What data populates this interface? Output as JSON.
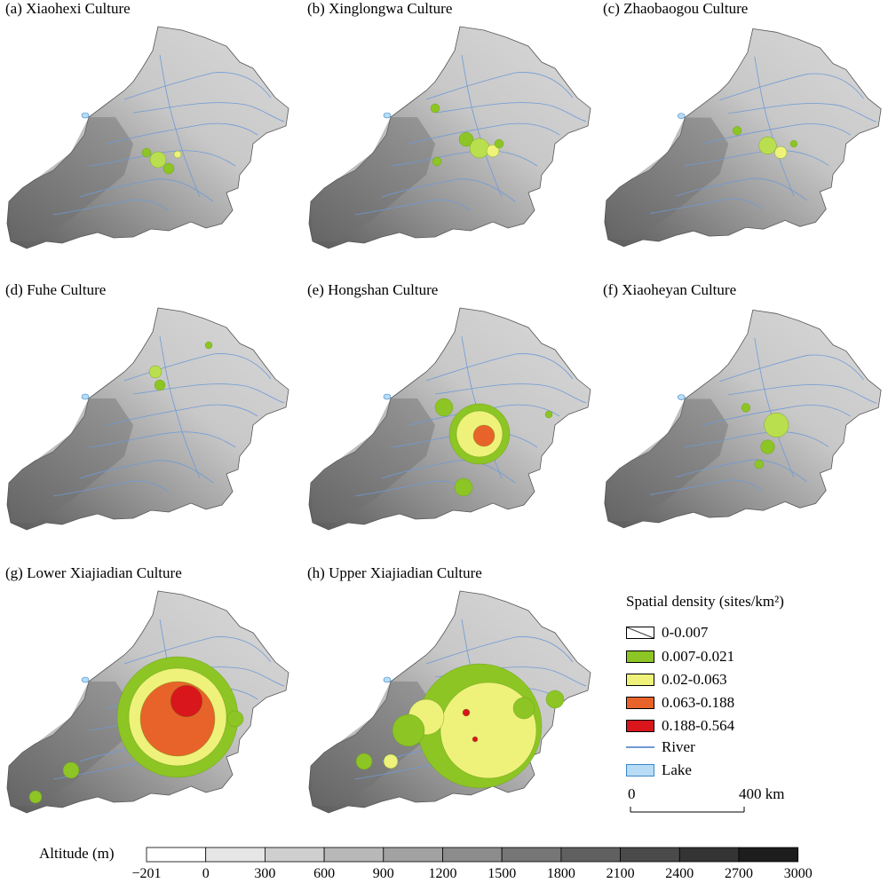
{
  "panels": [
    {
      "id": "a",
      "title": "(a) Xiaohexi Culture"
    },
    {
      "id": "b",
      "title": "(b) Xinglongwa Culture"
    },
    {
      "id": "c",
      "title": "(c) Zhaobaogou Culture"
    },
    {
      "id": "d",
      "title": "(d) Fuhe Culture"
    },
    {
      "id": "e",
      "title": "(e) Hongshan Culture"
    },
    {
      "id": "f",
      "title": "(f) Xiaoheyan Culture"
    },
    {
      "id": "g",
      "title": "(g) Lower Xiajiadian Culture"
    },
    {
      "id": "h",
      "title": "(h) Upper Xiajiadian Culture"
    }
  ],
  "legend": {
    "title": "Spatial density (sites/km²)",
    "items": [
      {
        "label": "0-0.007",
        "color": "#ffffff",
        "hatched": true
      },
      {
        "label": "0.007-0.021",
        "color": "#8cc524"
      },
      {
        "label": "0.02-0.063",
        "color": "#eef27a"
      },
      {
        "label": "0.063-0.188",
        "color": "#e8632a"
      },
      {
        "label": "0.188-0.564",
        "color": "#d8161c"
      },
      {
        "label": "River",
        "color": "#6f9ad6",
        "type": "line"
      },
      {
        "label": "Lake",
        "color": "#b8dcf5",
        "type": "box"
      }
    ]
  },
  "scale": {
    "start": "0",
    "end": "400 km"
  },
  "altitude": {
    "label": "Altitude (m)",
    "ticks": [
      "−201",
      "0",
      "300",
      "600",
      "900",
      "1200",
      "1500",
      "1800",
      "2100",
      "2400",
      "2700",
      "3000"
    ],
    "colors": [
      "#ffffff",
      "#e6e6e6",
      "#cfcfcf",
      "#b8b8b8",
      "#a2a2a2",
      "#8c8c8c",
      "#767676",
      "#606060",
      "#4a4a4a",
      "#343434",
      "#1d1d1d"
    ]
  }
}
